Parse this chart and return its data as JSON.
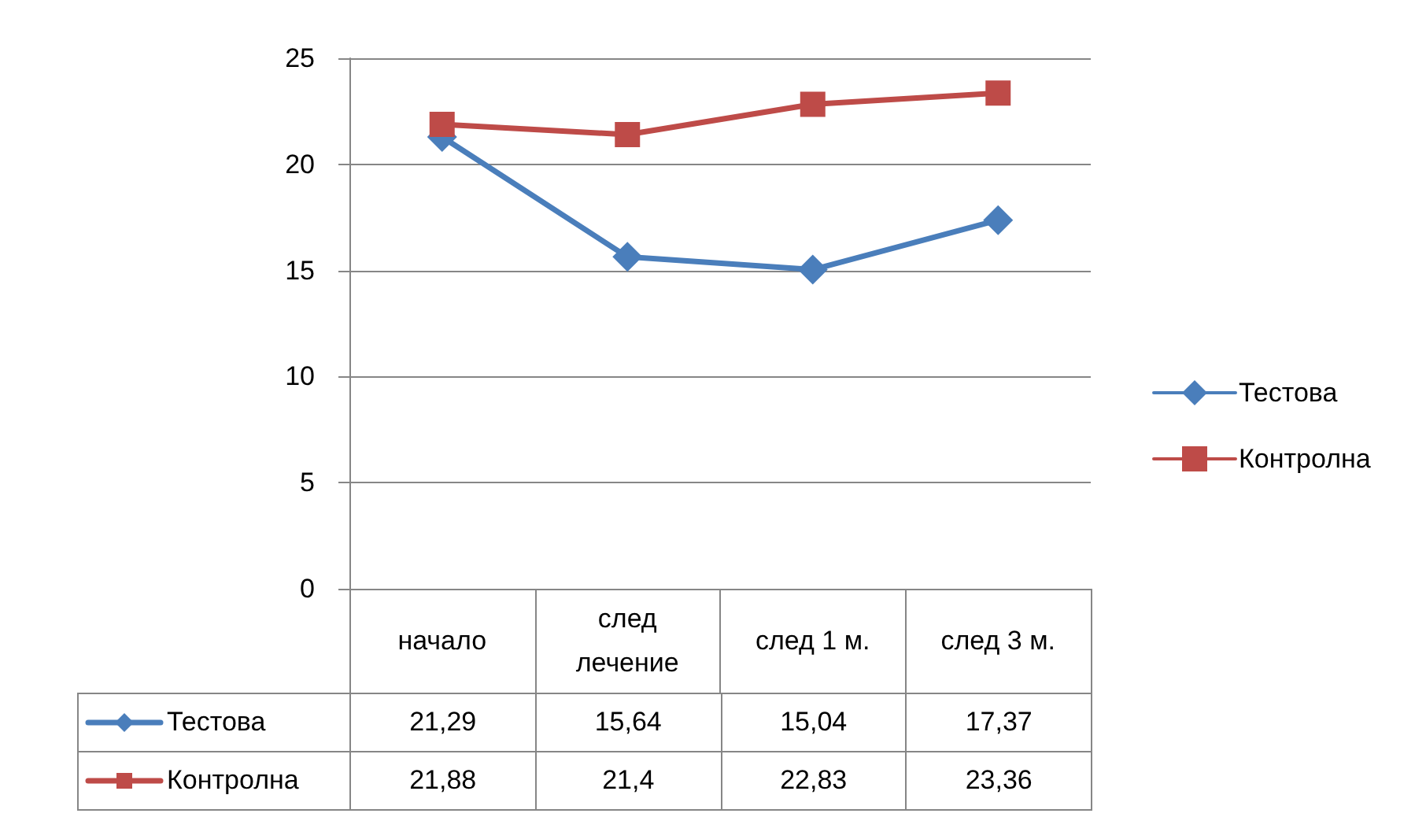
{
  "chart_data": {
    "type": "line",
    "categories": [
      "начало",
      "след лечение",
      "след 1 м.",
      "след 3 м."
    ],
    "series": [
      {
        "name": "Тестова",
        "color": "#4a7ebb",
        "marker": "diamond",
        "values": [
          21.29,
          15.64,
          15.04,
          17.37
        ],
        "value_labels": [
          "21,29",
          "15,64",
          "15,04",
          "17,37"
        ]
      },
      {
        "name": "Контролна",
        "color": "#be4b48",
        "marker": "square",
        "values": [
          21.88,
          21.4,
          22.83,
          23.36
        ],
        "value_labels": [
          "21,88",
          "21,4",
          "22,83",
          "23,36"
        ]
      }
    ],
    "ylim": [
      0,
      25
    ],
    "yticks": [
      0,
      5,
      10,
      15,
      20,
      25
    ],
    "grid": "y",
    "legend": "right",
    "line_style": "solid"
  }
}
